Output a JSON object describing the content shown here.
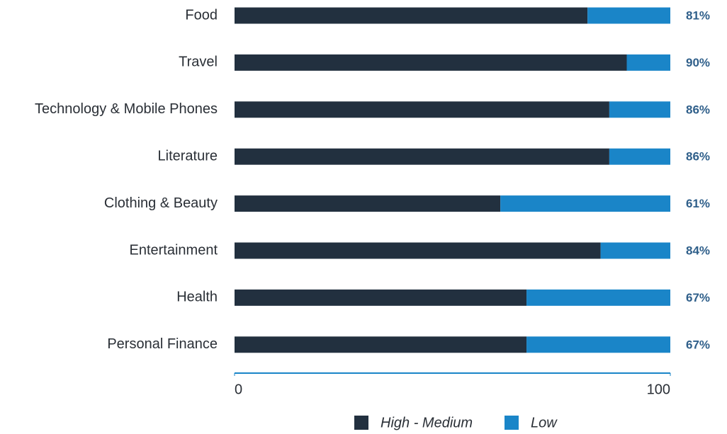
{
  "chart_data": {
    "type": "stacked_bar_horizontal",
    "categories": [
      "Food",
      "Travel",
      "Technology & Mobile Phones",
      "Literature",
      "Clothing & Beauty",
      "Entertainment",
      "Health",
      "Personal Finance"
    ],
    "series": [
      {
        "name": "High - Medium",
        "color": "#22303f",
        "values": [
          81,
          90,
          86,
          86,
          61,
          84,
          67,
          67
        ],
        "value_labels": [
          "81%",
          "90%",
          "86%",
          "86%",
          "61%",
          "84%",
          "67%",
          "67%"
        ]
      },
      {
        "name": "Low",
        "color": "#1a85c8",
        "values": [
          19,
          10,
          14,
          14,
          39,
          16,
          33,
          33
        ]
      }
    ],
    "xlim": [
      0,
      100
    ],
    "xticks": [
      0,
      100
    ],
    "legend": "bottom"
  }
}
